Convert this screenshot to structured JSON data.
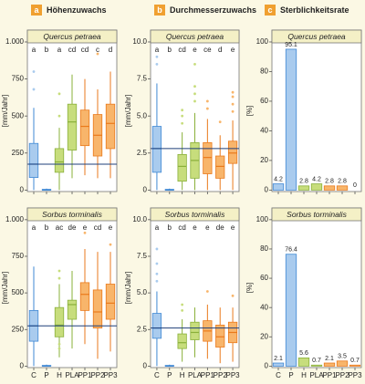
{
  "columns": [
    {
      "letter": "a",
      "title": "Höhenzuwachs"
    },
    {
      "letter": "b",
      "title": "Durchmesserzuwachs"
    },
    {
      "letter": "c",
      "title": "Sterblichkeitsrate"
    }
  ],
  "categories": [
    "C",
    "P",
    "H",
    "PLA",
    "PP1",
    "PP2",
    "PP3"
  ],
  "colors": [
    "#a9cbee",
    "#a9cbee",
    "#c7dd7c",
    "#c7dd7c",
    "#f8b56b",
    "#f8b56b",
    "#f8b56b"
  ],
  "edge_colors": [
    "#3f88d4",
    "#3f88d4",
    "#8ab03a",
    "#8ab03a",
    "#ea7a1c",
    "#ea7a1c",
    "#ea7a1c"
  ],
  "chart_data": [
    {
      "type": "box",
      "title": "Quercus petraea",
      "ylabel": "[mm/Jahr]",
      "ylim": [
        -10,
        1080
      ],
      "yticks": [
        0,
        250,
        500,
        750,
        {
          "value": 1000,
          "label": "1.000"
        }
      ],
      "letters": [
        "a",
        "b",
        "a",
        "cd",
        "cd",
        "c",
        "d"
      ],
      "boxes": [
        {
          "low": 0,
          "q1": 85,
          "median": 175,
          "q3": 315,
          "high": 555,
          "outliers": [
            680,
            800
          ]
        },
        {
          "low": 0,
          "q1": 0,
          "median": 0,
          "q3": 5,
          "high": 10,
          "outliers": []
        },
        {
          "low": 0,
          "q1": 120,
          "median": 190,
          "q3": 280,
          "high": 420,
          "outliers": [
            500,
            650
          ]
        },
        {
          "low": 80,
          "q1": 270,
          "median": 460,
          "q3": 580,
          "high": 780,
          "outliers": []
        },
        {
          "low": 100,
          "q1": 300,
          "median": 430,
          "q3": 540,
          "high": 750,
          "outliers": []
        },
        {
          "low": 80,
          "q1": 230,
          "median": 370,
          "q3": 510,
          "high": 680,
          "outliers": [
            920
          ]
        },
        {
          "low": 80,
          "q1": 280,
          "median": 450,
          "q3": 580,
          "high": 800,
          "outliers": []
        }
      ]
    },
    {
      "type": "box",
      "title": "Quercus petraea",
      "ylabel": "[mm/Jahr]",
      "ylim": [
        -0.1,
        10.8
      ],
      "yticks": [
        0,
        2.5,
        {
          "value": 5,
          "label": "5.0"
        },
        7.5,
        {
          "value": 10,
          "label": "10.0"
        }
      ],
      "letters": [
        "a",
        "b",
        "cd",
        "e",
        "ce",
        "d",
        "e"
      ],
      "boxes": [
        {
          "low": 0,
          "q1": 1.2,
          "median": 2.8,
          "q3": 4.3,
          "high": 7.2,
          "outliers": [
            8.5,
            9.0
          ]
        },
        {
          "low": 0,
          "q1": 0,
          "median": 0,
          "q3": 0.05,
          "high": 0.1,
          "outliers": []
        },
        {
          "low": 0,
          "q1": 0.6,
          "median": 1.6,
          "q3": 2.4,
          "high": 3.9,
          "outliers": [
            4.5,
            5.0,
            5.4
          ]
        },
        {
          "low": 0,
          "q1": 0.8,
          "median": 2.0,
          "q3": 3.2,
          "high": 5.2,
          "outliers": [
            6.0,
            6.5,
            7.0,
            8.5
          ]
        },
        {
          "low": 0,
          "q1": 1.1,
          "median": 2.2,
          "q3": 3.2,
          "high": 4.8,
          "outliers": [
            5.5,
            6.0
          ]
        },
        {
          "low": 0,
          "q1": 0.8,
          "median": 1.6,
          "q3": 2.3,
          "high": 3.7,
          "outliers": [
            4.6
          ]
        },
        {
          "low": 0,
          "q1": 1.8,
          "median": 2.5,
          "q3": 3.3,
          "high": 4.7,
          "outliers": [
            5.3,
            5.8,
            6.3,
            6.6
          ]
        }
      ]
    },
    {
      "type": "bar",
      "title": "Quercus petraea",
      "ylabel": "[%]",
      "ylim": [
        -1,
        108
      ],
      "yticks": [
        0,
        20,
        40,
        60,
        80,
        100
      ],
      "values": [
        4.2,
        95.1,
        2.8,
        4.2,
        2.8,
        2.8,
        0
      ]
    },
    {
      "type": "box",
      "title": "Sorbus torminalis",
      "ylabel": "[mm/Jahr]",
      "ylim": [
        -10,
        1080
      ],
      "yticks": [
        0,
        250,
        500,
        750,
        {
          "value": 1000,
          "label": "1.000"
        }
      ],
      "letters": [
        "a",
        "b",
        "ac",
        "de",
        "e",
        "cd",
        "e"
      ],
      "boxes": [
        {
          "low": 0,
          "q1": 170,
          "median": 275,
          "q3": 380,
          "high": 680,
          "outliers": []
        },
        {
          "low": 0,
          "q1": 0,
          "median": 0,
          "q3": 5,
          "high": 10,
          "outliers": []
        },
        {
          "low": 60,
          "q1": 200,
          "median": 280,
          "q3": 400,
          "high": 560,
          "outliers": [
            600,
            650,
            150,
            120
          ]
        },
        {
          "low": 120,
          "q1": 320,
          "median": 420,
          "q3": 450,
          "high": 650,
          "outliers": []
        },
        {
          "low": 150,
          "q1": 380,
          "median": 490,
          "q3": 570,
          "high": 800,
          "outliers": [
            910
          ]
        },
        {
          "low": 50,
          "q1": 260,
          "median": 370,
          "q3": 520,
          "high": 780,
          "outliers": []
        },
        {
          "low": 100,
          "q1": 320,
          "median": 430,
          "q3": 560,
          "high": 780,
          "outliers": [
            830
          ]
        }
      ]
    },
    {
      "type": "box",
      "title": "Sorbus torminalis",
      "ylabel": "[mm/Jahr]",
      "ylim": [
        -0.1,
        10.8
      ],
      "yticks": [
        0,
        2.5,
        {
          "value": 5,
          "label": "5.0"
        },
        7.5,
        {
          "value": 10,
          "label": "10.0"
        }
      ],
      "letters": [
        "a",
        "b",
        "cd",
        "e",
        "e",
        "de",
        "e"
      ],
      "boxes": [
        {
          "low": 0,
          "q1": 1.9,
          "median": 2.6,
          "q3": 3.6,
          "high": 5.1,
          "outliers": [
            5.8,
            6.3,
            7.0,
            8.0
          ]
        },
        {
          "low": 0,
          "q1": 0,
          "median": 0,
          "q3": 0.05,
          "high": 0.1,
          "outliers": []
        },
        {
          "low": 0.3,
          "q1": 1.2,
          "median": 1.6,
          "q3": 2.2,
          "high": 3.2,
          "outliers": [
            3.8,
            4.2
          ]
        },
        {
          "low": 0.6,
          "q1": 1.8,
          "median": 2.3,
          "q3": 3.0,
          "high": 4.0,
          "outliers": []
        },
        {
          "low": 0.5,
          "q1": 1.7,
          "median": 2.4,
          "q3": 3.1,
          "high": 4.2,
          "outliers": [
            5.1
          ]
        },
        {
          "low": 0.2,
          "q1": 1.3,
          "median": 2.0,
          "q3": 2.8,
          "high": 4.0,
          "outliers": []
        },
        {
          "low": 0.3,
          "q1": 1.6,
          "median": 2.3,
          "q3": 3.0,
          "high": 4.0,
          "outliers": [
            4.8
          ]
        }
      ]
    },
    {
      "type": "bar",
      "title": "Sorbus torminalis",
      "ylabel": "[%]",
      "ylim": [
        -1,
        108
      ],
      "yticks": [
        0,
        20,
        40,
        60,
        80,
        100
      ],
      "values": [
        2.1,
        76.4,
        5.6,
        0.7,
        2.1,
        3.5,
        0.7
      ]
    }
  ]
}
